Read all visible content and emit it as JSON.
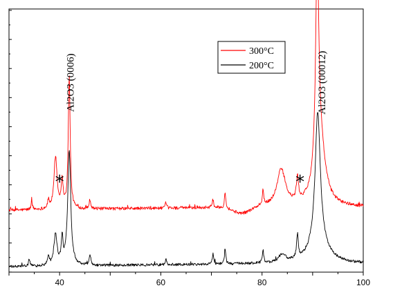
{
  "chart_data": {
    "type": "line",
    "title": "",
    "xlabel": "",
    "ylabel": "",
    "xlim": [
      30,
      100
    ],
    "ylim": [
      0,
      10
    ],
    "x_ticks": [
      40,
      60,
      80,
      100
    ],
    "x_tick_labels": [
      "40",
      "60",
      "80",
      "100"
    ],
    "y_tick_labels_shown": false,
    "grid": false,
    "legend_position": "upper-right",
    "series": [
      {
        "name": "300°C",
        "color": "#ff0000",
        "baseline": 2.35,
        "noise": 0.06,
        "peaks": [
          {
            "x": 34.5,
            "h": 0.35,
            "w": 0.15
          },
          {
            "x": 37.8,
            "h": 0.3,
            "w": 0.2
          },
          {
            "x": 39.2,
            "h": 2.0,
            "w": 0.35
          },
          {
            "x": 40.5,
            "h": 1.0,
            "w": 0.25
          },
          {
            "x": 41.9,
            "h": 5.1,
            "w": 0.22
          },
          {
            "x": 46.0,
            "h": 0.35,
            "w": 0.2
          },
          {
            "x": 61.0,
            "h": 0.2,
            "w": 0.15
          },
          {
            "x": 70.3,
            "h": 0.3,
            "w": 0.15
          },
          {
            "x": 72.7,
            "h": 0.65,
            "w": 0.15
          },
          {
            "x": 80.2,
            "h": 0.6,
            "w": 0.15
          },
          {
            "x": 83.8,
            "h": 1.4,
            "w": 1.0
          },
          {
            "x": 87.0,
            "h": 0.9,
            "w": 0.25
          },
          {
            "x": 90.9,
            "h": 7.9,
            "w": 0.35
          },
          {
            "x": 91.4,
            "h": 2.5,
            "w": 1.2
          }
        ],
        "dips": [
          {
            "x": 76.0,
            "d": 0.25,
            "w": 2.5
          }
        ]
      },
      {
        "name": "200°C",
        "color": "#000000",
        "baseline": 0.2,
        "noise": 0.05,
        "peaks": [
          {
            "x": 34.0,
            "h": 0.3,
            "w": 0.15
          },
          {
            "x": 37.8,
            "h": 0.35,
            "w": 0.2
          },
          {
            "x": 39.2,
            "h": 1.2,
            "w": 0.35
          },
          {
            "x": 40.5,
            "h": 1.0,
            "w": 0.2
          },
          {
            "x": 41.9,
            "h": 4.4,
            "w": 0.35
          },
          {
            "x": 46.0,
            "h": 0.4,
            "w": 0.2
          },
          {
            "x": 61.0,
            "h": 0.2,
            "w": 0.15
          },
          {
            "x": 70.3,
            "h": 0.4,
            "w": 0.15
          },
          {
            "x": 72.7,
            "h": 0.6,
            "w": 0.15
          },
          {
            "x": 80.2,
            "h": 0.5,
            "w": 0.15
          },
          {
            "x": 84.0,
            "h": 0.3,
            "w": 0.8
          },
          {
            "x": 87.0,
            "h": 0.9,
            "w": 0.2
          },
          {
            "x": 91.0,
            "h": 5.0,
            "w": 0.6
          },
          {
            "x": 91.2,
            "h": 0.8,
            "w": 2.0
          }
        ],
        "dips": []
      }
    ],
    "annotations": [
      {
        "text": "Al2O3 (0006)",
        "x": 42.8,
        "y": 7.2,
        "rotate": -90
      },
      {
        "text": "Al2O3 (00012)",
        "x": 92.5,
        "y": 7.2,
        "rotate": -90
      },
      {
        "text": "*",
        "x": 40.0,
        "y": 3.2
      },
      {
        "text": "*",
        "x": 87.5,
        "y": 3.2
      }
    ]
  }
}
